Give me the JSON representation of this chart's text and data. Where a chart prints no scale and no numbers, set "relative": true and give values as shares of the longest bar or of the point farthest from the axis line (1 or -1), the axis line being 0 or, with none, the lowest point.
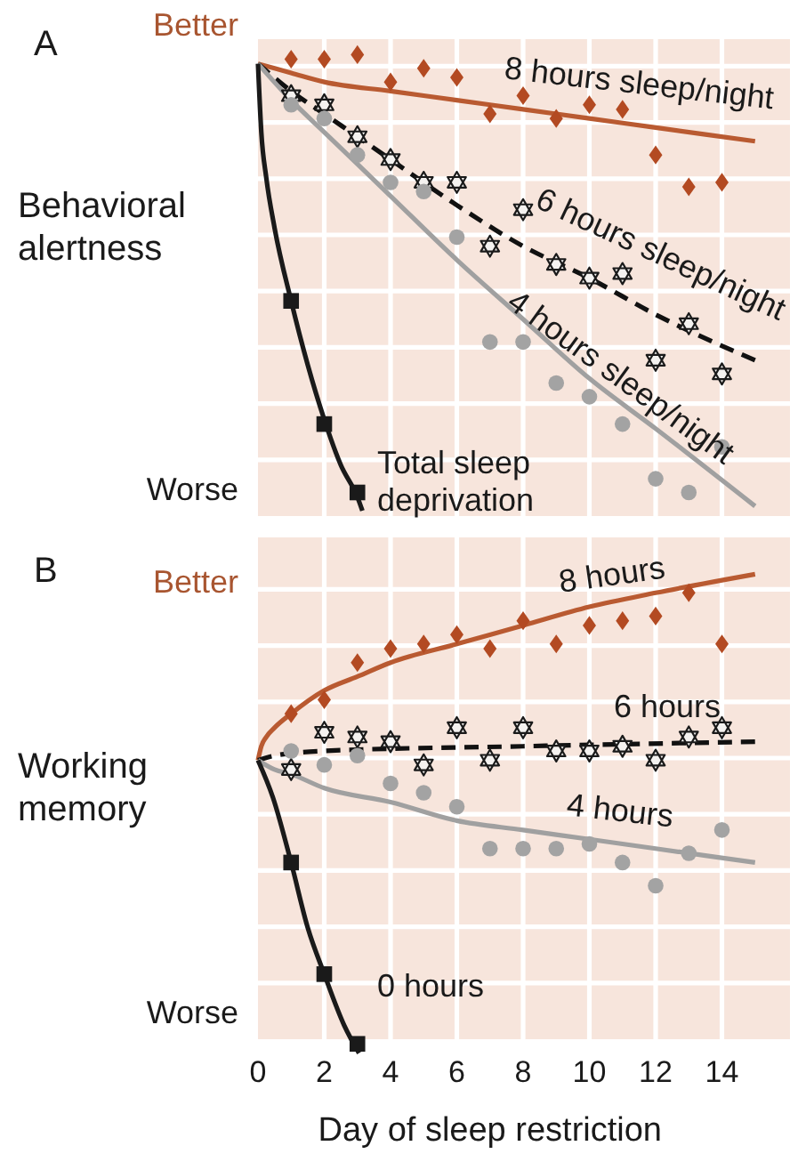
{
  "chart_data": [
    {
      "type": "scatter",
      "title": "A",
      "ylabel": "Behavioral alertness",
      "annotations": [
        "Better",
        "Worse"
      ],
      "relative": true,
      "xlim": [
        0,
        16
      ],
      "xticks": [
        0,
        2,
        4,
        6,
        8,
        10,
        12,
        14
      ],
      "tick_labels": false,
      "grid": true,
      "series": [
        {
          "marker": "diamond",
          "color": "#b34a22",
          "x": [
            1,
            2,
            3,
            4,
            5,
            6,
            7,
            8,
            9,
            10,
            11,
            12,
            13,
            14
          ],
          "values": [
            0.99,
            0.99,
            1,
            0.94,
            0.97,
            0.95,
            0.87,
            0.91,
            0.86,
            0.89,
            0.88,
            0.78,
            0.71,
            0.72
          ]
        },
        {
          "type": "line",
          "name": "8 hours sleep/night",
          "line_style": "solid",
          "color": "#b95a31",
          "x": [
            0,
            1,
            2,
            4,
            6,
            8,
            10,
            12,
            15
          ],
          "values": [
            0.98,
            0.96,
            0.94,
            0.92,
            0.9,
            0.88,
            0.86,
            0.84,
            0.81
          ]
        },
        {
          "marker": "star",
          "color": "#1a1a1a",
          "x": [
            1,
            2,
            3,
            4,
            5,
            6,
            7,
            8,
            9,
            10,
            11,
            12,
            13,
            14
          ],
          "values": [
            0.91,
            0.89,
            0.82,
            0.77,
            0.72,
            0.72,
            0.58,
            0.66,
            0.54,
            0.51,
            0.52,
            0.33,
            0.41,
            0.3
          ]
        },
        {
          "type": "line",
          "name": "6 hours sleep/night",
          "line_style": "dashed",
          "color": "#111111",
          "x": [
            0,
            1,
            2,
            4,
            6,
            8,
            10,
            12,
            15
          ],
          "values": [
            0.98,
            0.92,
            0.87,
            0.77,
            0.67,
            0.58,
            0.51,
            0.43,
            0.33
          ]
        },
        {
          "marker": "circle",
          "color": "#a3a3a3",
          "x": [
            1,
            2,
            3,
            4,
            5,
            6,
            7,
            8,
            9,
            10,
            11,
            12,
            13,
            14
          ],
          "values": [
            0.89,
            0.86,
            0.78,
            0.72,
            0.7,
            0.6,
            0.37,
            0.37,
            0.28,
            0.25,
            0.19,
            0.07,
            0.04,
            0.14
          ]
        },
        {
          "type": "line",
          "name": "4 hours sleep/night",
          "line_style": "solid",
          "color": "#a0a0a0",
          "x": [
            0,
            1,
            2,
            4,
            6,
            8,
            10,
            12,
            15
          ],
          "values": [
            0.98,
            0.9,
            0.83,
            0.69,
            0.55,
            0.42,
            0.29,
            0.18,
            0.01
          ]
        },
        {
          "marker": "square",
          "color": "#1a1a1a",
          "x": [
            1,
            2,
            3
          ],
          "values": [
            0.46,
            0.19,
            0.04
          ]
        },
        {
          "type": "line",
          "name": "Total sleep deprivation",
          "line_style": "solid",
          "color": "#1a1a1a",
          "x": [
            0,
            0.1,
            0.25,
            0.5,
            1,
            1.5,
            2,
            2.5,
            3,
            3.15
          ],
          "values": [
            0.98,
            0.83,
            0.73,
            0.62,
            0.46,
            0.32,
            0.2,
            0.1,
            0.03,
            0
          ]
        }
      ]
    },
    {
      "type": "scatter",
      "title": "B",
      "ylabel": "Working memory",
      "xlabel": "Day of sleep restriction",
      "annotations": [
        "Better",
        "Worse"
      ],
      "relative": true,
      "xlim": [
        0,
        16
      ],
      "xticks": [
        0,
        2,
        4,
        6,
        8,
        10,
        12,
        14
      ],
      "tick_labels": "x",
      "grid": true,
      "series": [
        {
          "marker": "diamond",
          "color": "#b34a22",
          "x": [
            1,
            2,
            3,
            4,
            5,
            6,
            7,
            8,
            9,
            10,
            11,
            12,
            13,
            14
          ],
          "values": [
            0.7,
            0.73,
            0.81,
            0.84,
            0.85,
            0.87,
            0.84,
            0.9,
            0.85,
            0.89,
            0.9,
            0.91,
            0.96,
            0.85
          ]
        },
        {
          "type": "line",
          "name": "8 hours",
          "line_style": "solid",
          "color": "#b95a31",
          "x": [
            0,
            0.1,
            0.25,
            0.5,
            1,
            2,
            3,
            4,
            6,
            8,
            10,
            12,
            15
          ],
          "values": [
            0.6,
            0.63,
            0.65,
            0.67,
            0.7,
            0.75,
            0.78,
            0.81,
            0.85,
            0.89,
            0.93,
            0.96,
            1
          ]
        },
        {
          "marker": "star",
          "color": "#1a1a1a",
          "x": [
            1,
            2,
            3,
            4,
            5,
            6,
            7,
            8,
            9,
            10,
            11,
            12,
            13,
            14
          ],
          "values": [
            0.58,
            0.66,
            0.65,
            0.64,
            0.59,
            0.67,
            0.6,
            0.67,
            0.62,
            0.62,
            0.63,
            0.6,
            0.65,
            0.67
          ]
        },
        {
          "type": "line",
          "name": "6 hours",
          "line_style": "dashed",
          "color": "#111111",
          "x": [
            0,
            0.5,
            2,
            8,
            15
          ],
          "values": [
            0.6,
            0.61,
            0.62,
            0.63,
            0.64
          ]
        },
        {
          "marker": "circle",
          "color": "#a3a3a3",
          "x": [
            1,
            2,
            3,
            4,
            5,
            6,
            7,
            8,
            9,
            10,
            11,
            12,
            13,
            14
          ],
          "values": [
            0.62,
            0.59,
            0.61,
            0.55,
            0.53,
            0.5,
            0.41,
            0.41,
            0.41,
            0.42,
            0.38,
            0.33,
            0.4,
            0.45
          ]
        },
        {
          "type": "line",
          "name": "4 hours",
          "line_style": "solid",
          "color": "#a0a0a0",
          "x": [
            0,
            0.5,
            1,
            2,
            4,
            6,
            8,
            10,
            12,
            15
          ],
          "values": [
            0.6,
            0.58,
            0.57,
            0.54,
            0.51,
            0.47,
            0.45,
            0.43,
            0.41,
            0.38
          ]
        },
        {
          "marker": "square",
          "color": "#1a1a1a",
          "x": [
            1,
            2,
            3
          ],
          "values": [
            0.38,
            0.14,
            -0.01
          ]
        },
        {
          "type": "line",
          "name": "0 hours",
          "line_style": "solid",
          "color": "#1a1a1a",
          "x": [
            0,
            0.45,
            1,
            1.5,
            2,
            2.6,
            3.05
          ],
          "values": [
            0.6,
            0.52,
            0.38,
            0.24,
            0.14,
            0.03,
            -0.03
          ]
        }
      ]
    }
  ]
}
